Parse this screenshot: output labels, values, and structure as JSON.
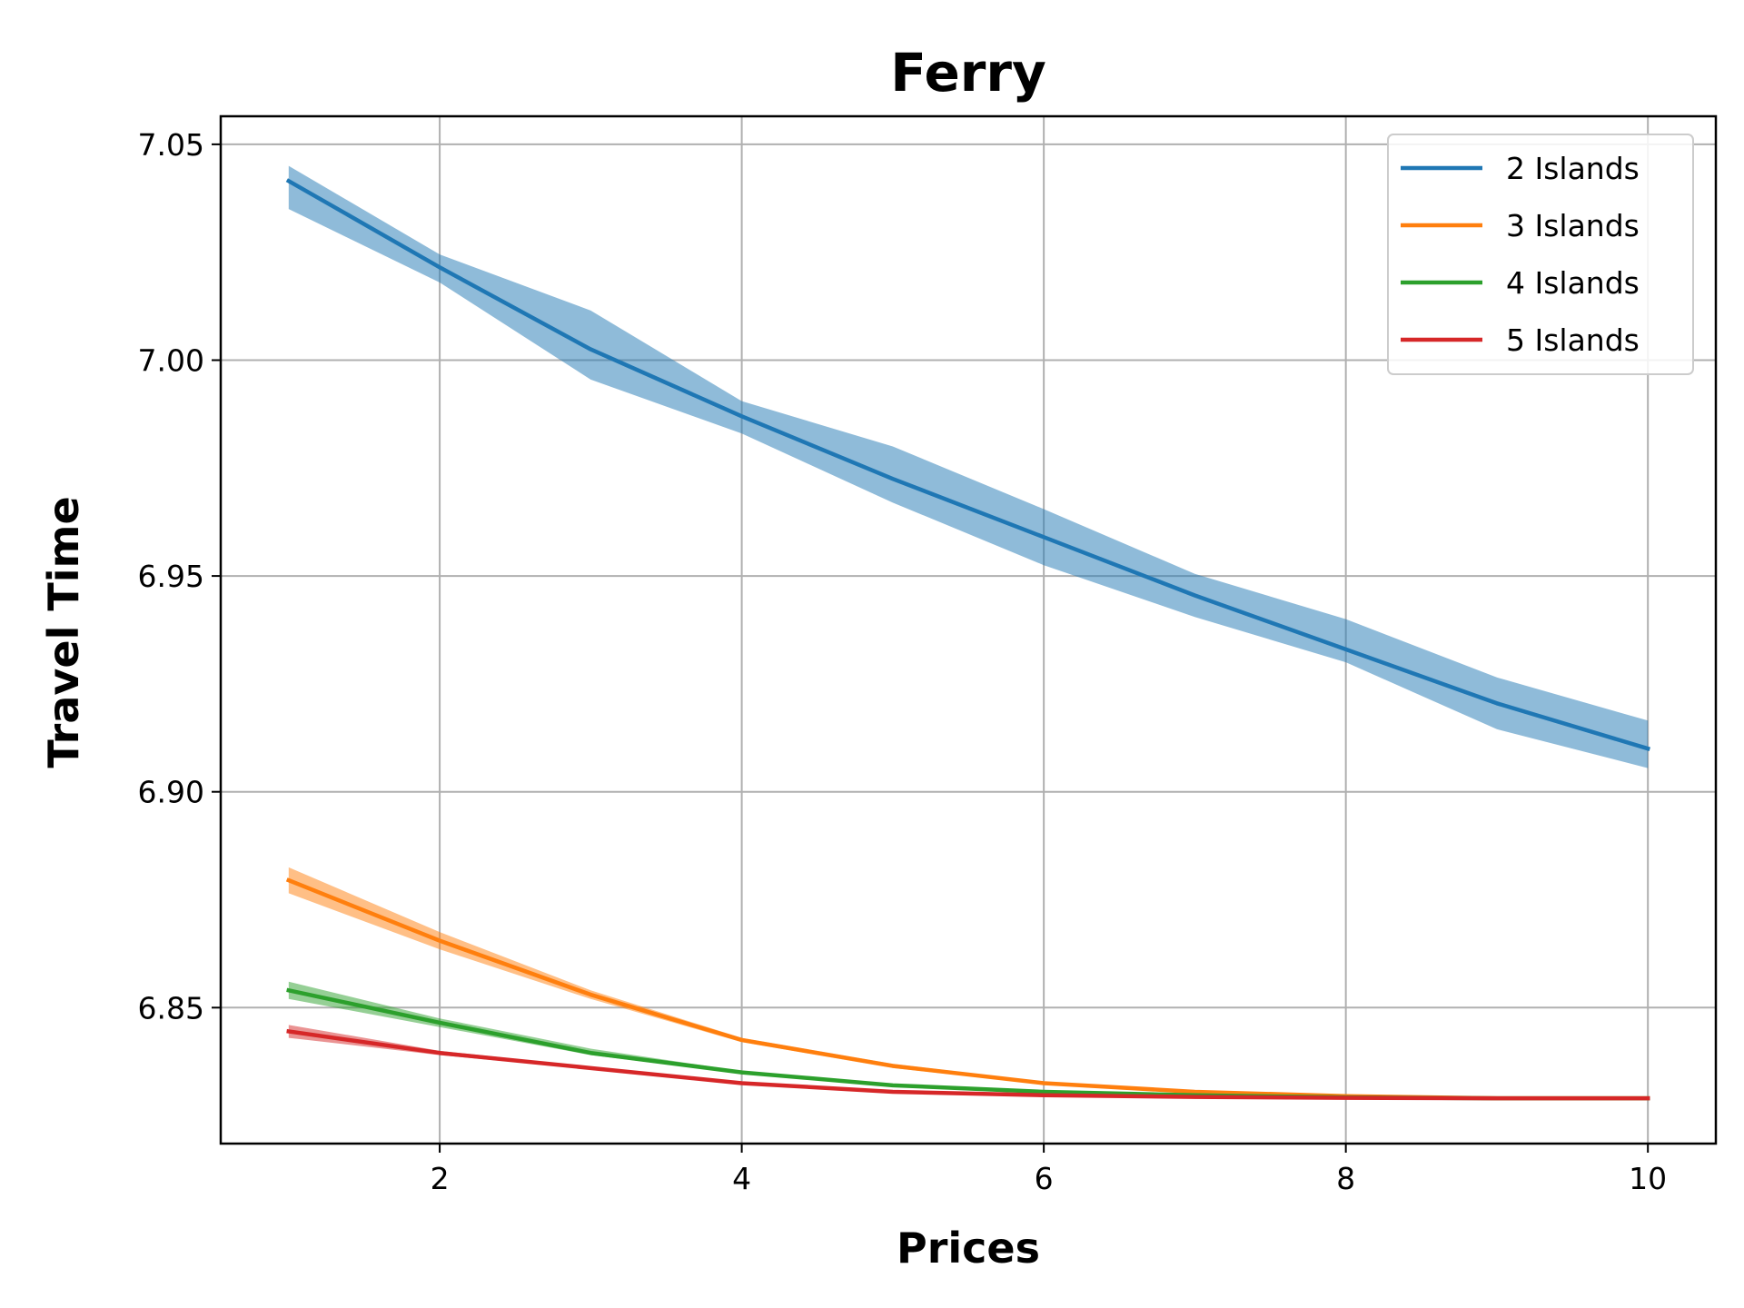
{
  "chart_data": {
    "type": "line",
    "title": "Ferry",
    "xlabel": "Prices",
    "ylabel": "Travel Time",
    "xlim": [
      0.55,
      10.45
    ],
    "ylim": [
      6.8185,
      7.0565
    ],
    "xticks": [
      2,
      4,
      6,
      8,
      10
    ],
    "yticks": [
      6.85,
      6.9,
      6.95,
      7.0,
      7.05
    ],
    "xtick_labels": [
      "2",
      "4",
      "6",
      "8",
      "10"
    ],
    "ytick_labels": [
      "6.85",
      "6.90",
      "6.95",
      "7.00",
      "7.05"
    ],
    "grid": true,
    "legend_position": "top-right",
    "x": [
      1,
      2,
      3,
      4,
      5,
      6,
      7,
      8,
      9,
      10
    ],
    "series": [
      {
        "name": "2 Islands",
        "color": "#1f77b4",
        "values": [
          7.0415,
          7.0215,
          7.0025,
          6.987,
          6.9725,
          6.959,
          6.9455,
          6.933,
          6.9205,
          6.91
        ],
        "lower": [
          7.035,
          7.018,
          6.9955,
          6.983,
          6.967,
          6.9525,
          6.9405,
          6.93,
          6.9145,
          6.9055
        ],
        "upper": [
          7.045,
          7.0245,
          7.0115,
          6.9905,
          6.98,
          6.9655,
          6.9505,
          6.94,
          6.9265,
          6.9165
        ]
      },
      {
        "name": "3 Islands",
        "color": "#ff7f0e",
        "values": [
          6.8795,
          6.8655,
          6.853,
          6.8425,
          6.8365,
          6.8325,
          6.8305,
          6.8295,
          6.829,
          6.829
        ],
        "lower": [
          6.8765,
          6.8635,
          6.852,
          6.842,
          6.836,
          6.8322,
          6.8303,
          6.8293,
          6.8289,
          6.8289
        ],
        "upper": [
          6.8825,
          6.8675,
          6.854,
          6.843,
          6.837,
          6.8328,
          6.8307,
          6.8297,
          6.8291,
          6.8291
        ]
      },
      {
        "name": "4 Islands",
        "color": "#2ca02c",
        "values": [
          6.854,
          6.8465,
          6.8395,
          6.835,
          6.832,
          6.8305,
          6.8297,
          6.8292,
          6.829,
          6.829
        ],
        "lower": [
          6.852,
          6.8455,
          6.839,
          6.8347,
          6.8318,
          6.8303,
          6.8296,
          6.8291,
          6.8289,
          6.8289
        ],
        "upper": [
          6.856,
          6.8475,
          6.8405,
          6.8353,
          6.8322,
          6.8307,
          6.8298,
          6.8293,
          6.8291,
          6.8291
        ]
      },
      {
        "name": "5 Islands",
        "color": "#d62728",
        "values": [
          6.8445,
          6.8395,
          6.836,
          6.8325,
          6.8305,
          6.8297,
          6.8293,
          6.8291,
          6.829,
          6.829
        ],
        "lower": [
          6.843,
          6.839,
          6.8357,
          6.8323,
          6.8304,
          6.8296,
          6.8292,
          6.829,
          6.8289,
          6.8289
        ],
        "upper": [
          6.846,
          6.84,
          6.8363,
          6.8327,
          6.8306,
          6.8298,
          6.8294,
          6.8292,
          6.8291,
          6.8291
        ]
      }
    ]
  }
}
